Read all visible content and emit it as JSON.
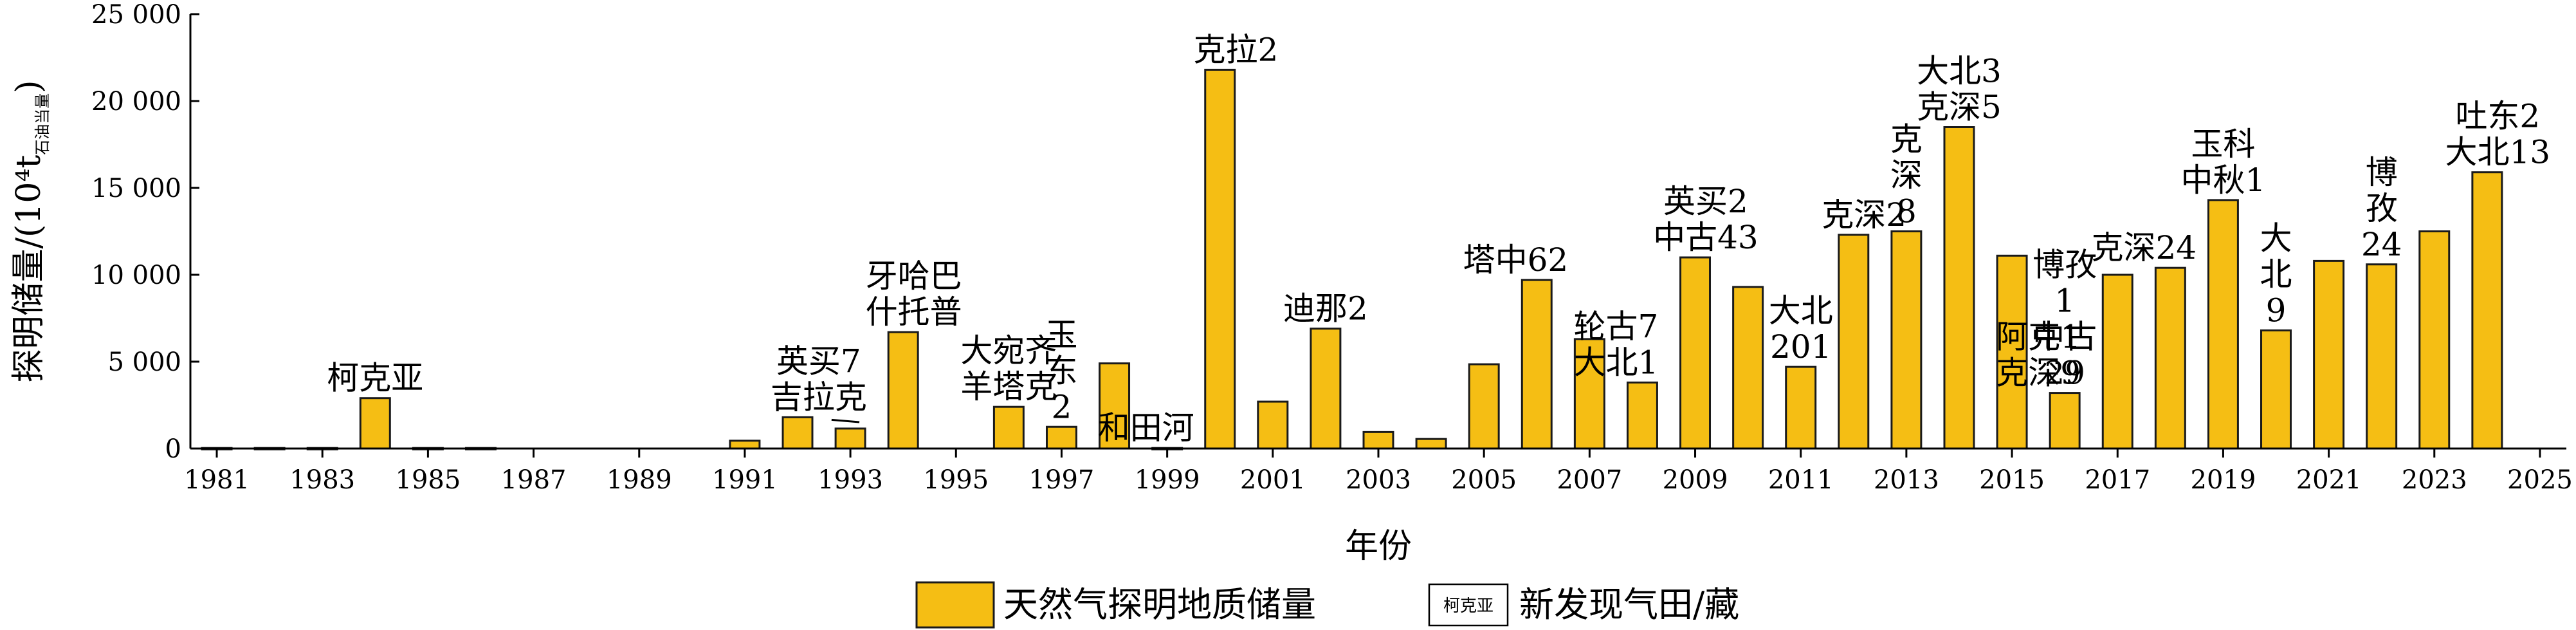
{
  "chart_data": {
    "type": "bar",
    "title": "",
    "xlabel": "年份",
    "ylabel": "探明储量/(10⁴t",
    "ylabel_sub": "石油当量",
    "ylabel_close": ")",
    "ylim": [
      0,
      25000
    ],
    "yticks": [
      0,
      5000,
      10000,
      15000,
      20000,
      25000
    ],
    "ytick_labels": [
      "0",
      "5 000",
      "10 000",
      "15 000",
      "20 000",
      "25 000"
    ],
    "xlim": [
      1981,
      2025
    ],
    "xticks": [
      1981,
      1983,
      1985,
      1987,
      1989,
      1991,
      1993,
      1995,
      1997,
      1999,
      2001,
      2003,
      2005,
      2007,
      2009,
      2011,
      2013,
      2015,
      2017,
      2019,
      2021,
      2023,
      2025
    ],
    "grid": false,
    "legend_position": "bottom",
    "series": [
      {
        "name": "天然气探明地质储量",
        "color": "#F5BE14",
        "points": [
          {
            "year": 1981,
            "value": 30
          },
          {
            "year": 1982,
            "value": 30
          },
          {
            "year": 1983,
            "value": 30
          },
          {
            "year": 1984,
            "value": 2900
          },
          {
            "year": 1985,
            "value": 30
          },
          {
            "year": 1986,
            "value": 30
          },
          {
            "year": 1991,
            "value": 450
          },
          {
            "year": 1992,
            "value": 1800
          },
          {
            "year": 1993,
            "value": 1150
          },
          {
            "year": 1994,
            "value": 6700
          },
          {
            "year": 1996,
            "value": 2400
          },
          {
            "year": 1997,
            "value": 1250
          },
          {
            "year": 1998,
            "value": 4900
          },
          {
            "year": 1999,
            "value": 30
          },
          {
            "year": 2000,
            "value": 21800
          },
          {
            "year": 2001,
            "value": 2700
          },
          {
            "year": 2002,
            "value": 6900
          },
          {
            "year": 2003,
            "value": 950
          },
          {
            "year": 2004,
            "value": 550
          },
          {
            "year": 2005,
            "value": 4850
          },
          {
            "year": 2006,
            "value": 9700
          },
          {
            "year": 2007,
            "value": 6300
          },
          {
            "year": 2008,
            "value": 3800
          },
          {
            "year": 2009,
            "value": 11000
          },
          {
            "year": 2010,
            "value": 9300
          },
          {
            "year": 2011,
            "value": 4700
          },
          {
            "year": 2012,
            "value": 12300
          },
          {
            "year": 2013,
            "value": 12500
          },
          {
            "year": 2014,
            "value": 18500
          },
          {
            "year": 2015,
            "value": 11100
          },
          {
            "year": 2016,
            "value": 3200
          },
          {
            "year": 2017,
            "value": 10000
          },
          {
            "year": 2018,
            "value": 10400
          },
          {
            "year": 2019,
            "value": 14300
          },
          {
            "year": 2020,
            "value": 6800
          },
          {
            "year": 2021,
            "value": 10800
          },
          {
            "year": 2022,
            "value": 10600
          },
          {
            "year": 2023,
            "value": 12500
          },
          {
            "year": 2024,
            "value": 15900
          }
        ]
      }
    ],
    "annotations": [
      {
        "year": 1984,
        "lines": [
          "柯克亚"
        ]
      },
      {
        "year": 1992.4,
        "lines": [
          "英买7",
          "吉拉克"
        ],
        "leader_to": 1993
      },
      {
        "year": 1994.2,
        "lines": [
          "牙哈巴",
          "什托普"
        ]
      },
      {
        "year": 1996,
        "lines": [
          "大宛齐",
          "羊塔克"
        ]
      },
      {
        "year": 1997,
        "lines": [
          "玉",
          "东",
          "2"
        ]
      },
      {
        "year": 1998.6,
        "lines": [
          "和田河"
        ]
      },
      {
        "year": 2000.3,
        "lines": [
          "克拉2"
        ]
      },
      {
        "year": 2002,
        "lines": [
          "迪那2"
        ]
      },
      {
        "year": 2005.6,
        "lines": [
          "塔中62"
        ]
      },
      {
        "year": 2007.5,
        "lines": [
          "轮古7",
          "大北1"
        ]
      },
      {
        "year": 2009.2,
        "lines": [
          "英买2",
          "中古43"
        ]
      },
      {
        "year": 2011,
        "lines": [
          "大北",
          "201"
        ]
      },
      {
        "year": 2012.2,
        "lines": [
          "克深2"
        ]
      },
      {
        "year": 2013,
        "lines": [
          "克",
          "深",
          "8"
        ]
      },
      {
        "year": 2014,
        "lines": [
          "大北3",
          "克深5"
        ]
      },
      {
        "year": 2015.5,
        "lines": [
          "阿克1",
          "克深9"
        ]
      },
      {
        "year": 2016,
        "lines": [
          "博孜",
          "1",
          "中古",
          "29"
        ]
      },
      {
        "year": 2017.5,
        "lines": [
          "克深24"
        ]
      },
      {
        "year": 2019,
        "lines": [
          "玉科",
          "中秋1"
        ]
      },
      {
        "year": 2020,
        "lines": [
          "大",
          "北",
          "9"
        ]
      },
      {
        "year": 2022,
        "lines": [
          "博",
          "孜",
          "24"
        ]
      },
      {
        "year": 2024.2,
        "lines": [
          "吐东2",
          "大北13"
        ]
      }
    ]
  },
  "legend": {
    "bar_label": "天然气探明地质储量",
    "marker_sample": "柯克亚",
    "marker_label": "新发现气田/藏"
  }
}
